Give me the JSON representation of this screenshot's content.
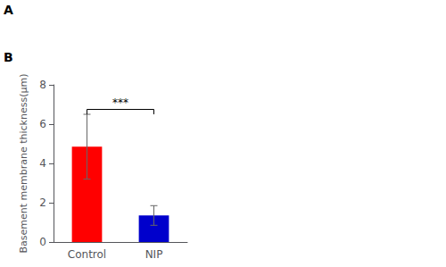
{
  "chart_data": {
    "type": "bar",
    "categories": [
      "Control",
      "NIP"
    ],
    "values": [
      4.85,
      1.35
    ],
    "errors": [
      1.65,
      0.5
    ],
    "colors": [
      "#FF0000",
      "#0000CC"
    ],
    "ylabel": "Basement membrane thickness(μm)",
    "ylim": [
      0,
      8
    ],
    "yticks": [
      0,
      2,
      4,
      6,
      8
    ],
    "grid": false,
    "annotations": [
      {
        "text": "A"
      },
      {
        "text": "B"
      },
      {
        "text": "***",
        "from": "Control",
        "to": "NIP",
        "y": 6.8,
        "bracket": [
          6.5,
          6.75
        ]
      }
    ]
  }
}
